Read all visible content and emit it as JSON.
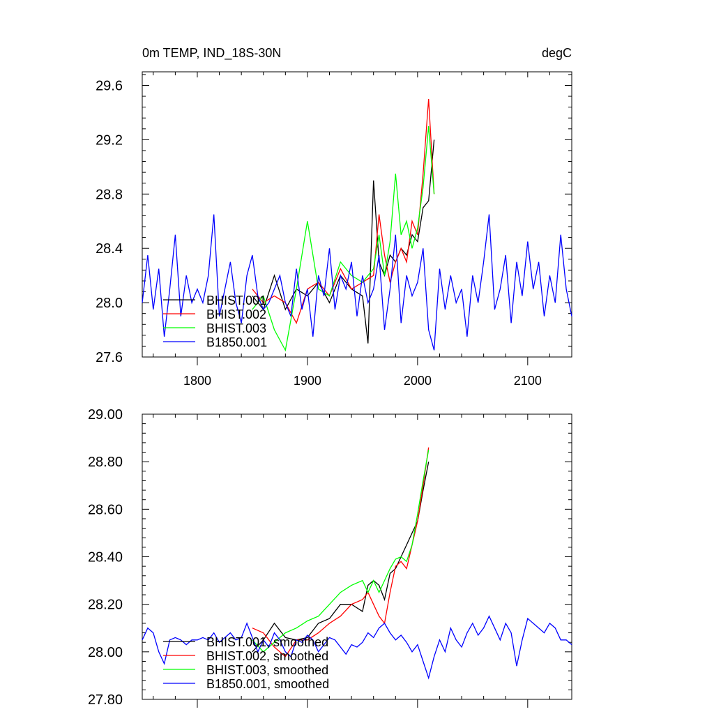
{
  "header": {
    "title_left": "0m TEMP, IND_18S-30N",
    "title_right": "degC"
  },
  "chart_data": [
    {
      "type": "line",
      "title": "0m TEMP, IND_18S-30N",
      "units": "degC",
      "xlim": [
        1750,
        2140
      ],
      "ylim": [
        27.6,
        29.7
      ],
      "x_ticks": [
        1800,
        1900,
        2000,
        2100
      ],
      "x_tick_labels": [
        "1800",
        "1900",
        "2000",
        "2100"
      ],
      "y_ticks": [
        27.6,
        28.0,
        28.4,
        28.8,
        29.2,
        29.6
      ],
      "y_tick_labels": [
        "27.6",
        "28.0",
        "28.4",
        "28.8",
        "29.2",
        "29.6"
      ],
      "grid": false,
      "legend_position": "bottom-left",
      "series": [
        {
          "name": "BHIST.001",
          "color": "#000000",
          "x": [
            1850,
            1860,
            1870,
            1880,
            1890,
            1900,
            1910,
            1920,
            1930,
            1940,
            1950,
            1955,
            1960,
            1965,
            1970,
            1975,
            1980,
            1985,
            1990,
            1995,
            2000,
            2005,
            2010,
            2015
          ],
          "y": [
            28.05,
            27.95,
            28.2,
            27.95,
            28.1,
            28.05,
            28.15,
            28.0,
            28.2,
            28.1,
            28.05,
            27.7,
            28.9,
            28.3,
            28.2,
            28.35,
            28.3,
            28.4,
            28.35,
            28.5,
            28.45,
            28.7,
            28.75,
            29.2
          ]
        },
        {
          "name": "BHIST.002",
          "color": "#ff0000",
          "x": [
            1850,
            1860,
            1870,
            1880,
            1890,
            1900,
            1910,
            1920,
            1930,
            1940,
            1950,
            1960,
            1965,
            1970,
            1975,
            1980,
            1985,
            1990,
            1995,
            2000,
            2005,
            2010,
            2015
          ],
          "y": [
            28.1,
            28.0,
            28.05,
            28.0,
            27.85,
            28.1,
            28.15,
            28.05,
            28.25,
            28.1,
            28.15,
            28.2,
            28.65,
            28.35,
            28.15,
            28.3,
            28.4,
            28.3,
            28.6,
            28.5,
            28.95,
            29.5,
            28.8
          ]
        },
        {
          "name": "BHIST.003",
          "color": "#00ff00",
          "x": [
            1850,
            1860,
            1870,
            1880,
            1890,
            1900,
            1910,
            1920,
            1930,
            1940,
            1950,
            1960,
            1965,
            1970,
            1975,
            1980,
            1985,
            1990,
            1995,
            2000,
            2005,
            2010,
            2015
          ],
          "y": [
            27.95,
            28.05,
            27.8,
            27.65,
            28.1,
            28.6,
            28.1,
            28.05,
            28.3,
            28.2,
            28.15,
            28.25,
            28.5,
            28.2,
            28.45,
            28.95,
            28.5,
            28.6,
            28.4,
            28.55,
            28.85,
            29.3,
            28.8
          ]
        },
        {
          "name": "B1850.001",
          "color": "#0000ff",
          "x": [
            1750,
            1755,
            1760,
            1765,
            1770,
            1775,
            1780,
            1785,
            1790,
            1795,
            1800,
            1805,
            1810,
            1815,
            1820,
            1825,
            1830,
            1835,
            1840,
            1845,
            1850,
            1855,
            1860,
            1865,
            1870,
            1875,
            1880,
            1885,
            1890,
            1895,
            1900,
            1905,
            1910,
            1915,
            1920,
            1925,
            1930,
            1935,
            1940,
            1945,
            1950,
            1955,
            1960,
            1965,
            1970,
            1975,
            1980,
            1985,
            1990,
            1995,
            2000,
            2005,
            2010,
            2015,
            2020,
            2025,
            2030,
            2035,
            2040,
            2045,
            2050,
            2055,
            2060,
            2065,
            2070,
            2075,
            2080,
            2085,
            2090,
            2095,
            2100,
            2105,
            2110,
            2115,
            2120,
            2125,
            2130,
            2135,
            2140
          ],
          "y": [
            28.0,
            28.35,
            27.95,
            28.25,
            27.75,
            28.1,
            28.5,
            27.9,
            28.2,
            28.0,
            28.1,
            28.0,
            28.2,
            28.65,
            27.9,
            28.1,
            28.3,
            28.0,
            27.85,
            28.2,
            28.35,
            28.05,
            27.95,
            28.0,
            28.1,
            28.2,
            28.0,
            27.9,
            28.25,
            27.95,
            28.1,
            27.75,
            28.2,
            28.05,
            28.4,
            27.95,
            28.2,
            28.1,
            28.3,
            27.9,
            28.2,
            28.0,
            28.1,
            28.35,
            27.8,
            28.1,
            28.5,
            27.85,
            28.2,
            28.05,
            28.15,
            28.4,
            27.8,
            27.65,
            28.25,
            27.95,
            28.2,
            28.0,
            28.1,
            27.75,
            28.2,
            28.0,
            28.3,
            28.65,
            27.95,
            28.1,
            28.35,
            27.85,
            28.3,
            28.05,
            28.45,
            28.1,
            28.3,
            27.9,
            28.2,
            28.0,
            28.5,
            28.1,
            27.9
          ]
        }
      ]
    },
    {
      "type": "line",
      "xlim": [
        1750,
        2140
      ],
      "ylim": [
        27.8,
        29.0
      ],
      "x_ticks": [
        1800,
        1900,
        2000,
        2100
      ],
      "x_tick_labels": [],
      "y_ticks": [
        27.8,
        28.0,
        28.2,
        28.4,
        28.6,
        28.8,
        29.0
      ],
      "y_tick_labels": [
        "27.80",
        "28.00",
        "28.20",
        "28.40",
        "28.60",
        "28.80",
        "29.00"
      ],
      "grid": false,
      "legend_position": "bottom-left",
      "series": [
        {
          "name": "BHIST.001, smoothed",
          "color": "#000000",
          "x": [
            1850,
            1860,
            1870,
            1880,
            1890,
            1900,
            1910,
            1920,
            1930,
            1940,
            1950,
            1955,
            1960,
            1965,
            1970,
            1975,
            1980,
            1985,
            1990,
            1995,
            2000,
            2005,
            2010
          ],
          "y": [
            28.0,
            28.05,
            28.12,
            28.06,
            28.05,
            28.06,
            28.12,
            28.14,
            28.2,
            28.2,
            28.17,
            28.28,
            28.3,
            28.28,
            28.22,
            28.33,
            28.35,
            28.4,
            28.45,
            28.5,
            28.55,
            28.68,
            28.8
          ]
        },
        {
          "name": "BHIST.002, smoothed",
          "color": "#ff0000",
          "x": [
            1850,
            1860,
            1870,
            1880,
            1890,
            1900,
            1910,
            1920,
            1930,
            1940,
            1950,
            1955,
            1960,
            1965,
            1970,
            1975,
            1980,
            1985,
            1990,
            1995,
            2000,
            2005,
            2010
          ],
          "y": [
            28.1,
            28.08,
            28.02,
            27.98,
            28.05,
            28.05,
            28.08,
            28.12,
            28.15,
            28.2,
            28.22,
            28.25,
            28.2,
            28.15,
            28.12,
            28.25,
            28.36,
            28.38,
            28.35,
            28.45,
            28.55,
            28.7,
            28.86
          ]
        },
        {
          "name": "BHIST.003, smoothed",
          "color": "#00ff00",
          "x": [
            1850,
            1860,
            1870,
            1880,
            1890,
            1900,
            1910,
            1920,
            1930,
            1940,
            1950,
            1955,
            1960,
            1965,
            1970,
            1975,
            1980,
            1985,
            1990,
            1995,
            2000,
            2005,
            2010
          ],
          "y": [
            28.05,
            28.0,
            28.04,
            28.08,
            28.1,
            28.13,
            28.15,
            28.2,
            28.25,
            28.28,
            28.3,
            28.25,
            28.3,
            28.25,
            28.3,
            28.35,
            28.39,
            28.4,
            28.38,
            28.45,
            28.58,
            28.72,
            28.85
          ]
        },
        {
          "name": "B1850.001, smoothed",
          "color": "#0000ff",
          "x": [
            1750,
            1755,
            1760,
            1765,
            1770,
            1775,
            1780,
            1785,
            1790,
            1795,
            1800,
            1805,
            1810,
            1815,
            1820,
            1825,
            1830,
            1835,
            1840,
            1845,
            1850,
            1855,
            1860,
            1865,
            1870,
            1875,
            1880,
            1885,
            1890,
            1895,
            1900,
            1905,
            1910,
            1915,
            1920,
            1925,
            1930,
            1935,
            1940,
            1945,
            1950,
            1955,
            1960,
            1965,
            1970,
            1975,
            1980,
            1985,
            1990,
            1995,
            2000,
            2005,
            2010,
            2015,
            2020,
            2025,
            2030,
            2035,
            2040,
            2045,
            2050,
            2055,
            2060,
            2065,
            2070,
            2075,
            2080,
            2085,
            2090,
            2095,
            2100,
            2105,
            2110,
            2115,
            2120,
            2125,
            2130,
            2135,
            2140
          ],
          "y": [
            28.05,
            28.1,
            28.08,
            28.0,
            27.95,
            28.05,
            28.06,
            28.05,
            28.03,
            28.05,
            28.05,
            28.06,
            28.05,
            28.08,
            28.04,
            28.06,
            28.08,
            28.05,
            28.06,
            28.12,
            28.06,
            28.0,
            28.05,
            28.02,
            28.08,
            28.05,
            28.0,
            27.98,
            28.05,
            28.04,
            28.07,
            28.05,
            28.0,
            28.03,
            28.06,
            28.05,
            28.02,
            27.99,
            28.03,
            28.02,
            28.04,
            28.08,
            28.06,
            28.1,
            28.12,
            28.08,
            28.05,
            28.07,
            28.04,
            28.0,
            28.03,
            27.96,
            27.89,
            27.98,
            28.05,
            28.0,
            28.1,
            28.05,
            28.02,
            28.08,
            28.12,
            28.07,
            28.1,
            28.15,
            28.1,
            28.05,
            28.12,
            28.08,
            27.94,
            28.05,
            28.14,
            28.12,
            28.1,
            28.08,
            28.12,
            28.1,
            28.05,
            28.05,
            28.03
          ]
        }
      ]
    }
  ]
}
